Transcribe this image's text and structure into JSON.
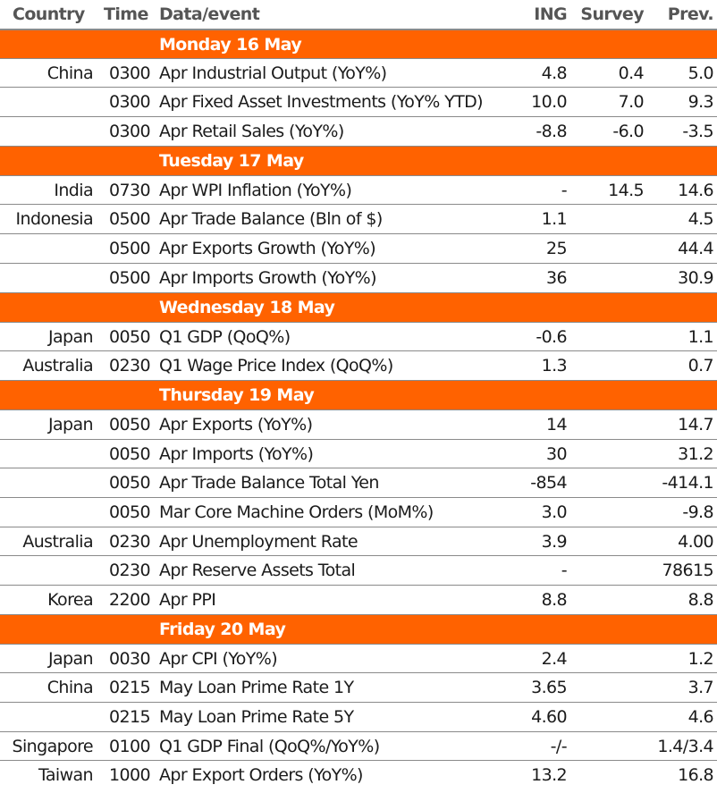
{
  "columns": {
    "country": "Country",
    "time": "Time",
    "event": "Data/event",
    "ing": "ING",
    "survey": "Survey",
    "prev": "Prev."
  },
  "days": [
    {
      "label": "Monday 16 May",
      "rows": [
        {
          "country": "China",
          "time": "0300",
          "event": "Apr Industrial Output (YoY%)",
          "ing": "4.8",
          "survey": "0.4",
          "prev": "5.0"
        },
        {
          "country": "",
          "time": "0300",
          "event": "Apr Fixed Asset Investments (YoY% YTD)",
          "ing": "10.0",
          "survey": "7.0",
          "prev": "9.3"
        },
        {
          "country": "",
          "time": "0300",
          "event": "Apr Retail Sales (YoY%)",
          "ing": "-8.8",
          "survey": "-6.0",
          "prev": "-3.5"
        }
      ]
    },
    {
      "label": "Tuesday 17 May",
      "rows": [
        {
          "country": "India",
          "time": "0730",
          "event": "Apr WPI Inflation (YoY%)",
          "ing": "-",
          "survey": "14.5",
          "prev": "14.6"
        },
        {
          "country": "Indonesia",
          "time": "0500",
          "event": "Apr Trade Balance (Bln of $)",
          "ing": "1.1",
          "survey": "",
          "prev": "4.5"
        },
        {
          "country": "",
          "time": "0500",
          "event": "Apr Exports Growth (YoY%)",
          "ing": "25",
          "survey": "",
          "prev": "44.4"
        },
        {
          "country": "",
          "time": "0500",
          "event": "Apr Imports Growth (YoY%)",
          "ing": "36",
          "survey": "",
          "prev": "30.9"
        }
      ]
    },
    {
      "label": "Wednesday 18 May",
      "rows": [
        {
          "country": "Japan",
          "time": "0050",
          "event": "Q1 GDP (QoQ%)",
          "ing": "-0.6",
          "survey": "",
          "prev": "1.1"
        },
        {
          "country": "Australia",
          "time": "0230",
          "event": "Q1 Wage Price Index (QoQ%)",
          "ing": "1.3",
          "survey": "",
          "prev": "0.7"
        }
      ]
    },
    {
      "label": "Thursday 19 May",
      "rows": [
        {
          "country": "Japan",
          "time": "0050",
          "event": "Apr Exports (YoY%)",
          "ing": "14",
          "survey": "",
          "prev": "14.7"
        },
        {
          "country": "",
          "time": "0050",
          "event": "Apr Imports (YoY%)",
          "ing": "30",
          "survey": "",
          "prev": "31.2"
        },
        {
          "country": "",
          "time": "0050",
          "event": "Apr Trade Balance Total Yen",
          "ing": "-854",
          "survey": "",
          "prev": "-414.1"
        },
        {
          "country": "",
          "time": "0050",
          "event": "Mar Core Machine Orders (MoM%)",
          "ing": "3.0",
          "survey": "",
          "prev": "-9.8"
        },
        {
          "country": "Australia",
          "time": "0230",
          "event": "Apr Unemployment Rate",
          "ing": "3.9",
          "survey": "",
          "prev": "4.00"
        },
        {
          "country": "",
          "time": "0230",
          "event": "Apr Reserve Assets Total",
          "ing": "-",
          "survey": "",
          "prev": "78615"
        },
        {
          "country": "Korea",
          "time": "2200",
          "event": "Apr PPI",
          "ing": "8.8",
          "survey": "",
          "prev": "8.8"
        }
      ]
    },
    {
      "label": "Friday 20 May",
      "rows": [
        {
          "country": "Japan",
          "time": "0030",
          "event": "Apr CPI (YoY%)",
          "ing": "2.4",
          "survey": "",
          "prev": "1.2"
        },
        {
          "country": "China",
          "time": "0215",
          "event": "May Loan Prime Rate 1Y",
          "ing": "3.65",
          "survey": "",
          "prev": "3.7"
        },
        {
          "country": "",
          "time": "0215",
          "event": "May Loan Prime Rate 5Y",
          "ing": "4.60",
          "survey": "",
          "prev": "4.6"
        },
        {
          "country": "Singapore",
          "time": "0100",
          "event": "Q1 GDP Final (QoQ%/YoY%)",
          "ing": "-/-",
          "survey": "",
          "prev": "1.4/3.4"
        },
        {
          "country": "Taiwan",
          "time": "1000",
          "event": "Apr Export Orders (YoY%)",
          "ing": "13.2",
          "survey": "",
          "prev": "16.8"
        }
      ]
    }
  ],
  "colors": {
    "day_band": "#ff6200",
    "header_text": "#555555",
    "body_text": "#1b1b1b",
    "rule": "#8a8a8a"
  }
}
